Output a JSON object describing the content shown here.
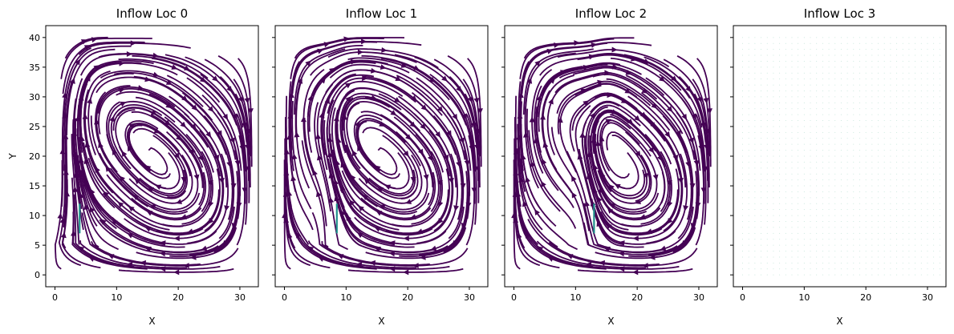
{
  "chart_data": [
    {
      "type": "streamplot",
      "title": "Inflow Loc 0",
      "xlabel": "X",
      "ylabel": "Y",
      "xlim": [
        -1.5,
        33
      ],
      "ylim": [
        -2,
        42
      ],
      "xticks": [
        0,
        10,
        20,
        30
      ],
      "yticks": [
        0,
        5,
        10,
        15,
        20,
        25,
        30,
        35,
        40
      ],
      "inflow_point": [
        4,
        8
      ],
      "color": "#440154"
    },
    {
      "type": "streamplot",
      "title": "Inflow Loc 1",
      "xlabel": "X",
      "ylabel": "",
      "xlim": [
        -1.5,
        33
      ],
      "ylim": [
        -2,
        42
      ],
      "xticks": [
        0,
        10,
        20,
        30
      ],
      "yticks": [
        0,
        5,
        10,
        15,
        20,
        25,
        30,
        35,
        40
      ],
      "inflow_point": [
        8.5,
        8
      ],
      "color": "#440154"
    },
    {
      "type": "streamplot",
      "title": "Inflow Loc 2",
      "xlabel": "X",
      "ylabel": "",
      "xlim": [
        -1.5,
        33
      ],
      "ylim": [
        -2,
        42
      ],
      "xticks": [
        0,
        10,
        20,
        30
      ],
      "yticks": [
        0,
        5,
        10,
        15,
        20,
        25,
        30,
        35,
        40
      ],
      "inflow_point": [
        13,
        8
      ],
      "color": "#440154"
    },
    {
      "type": "streamplot",
      "title": "Inflow Loc 3",
      "xlabel": "X",
      "ylabel": "",
      "xlim": [
        -1.5,
        33
      ],
      "ylim": [
        -2,
        42
      ],
      "xticks": [
        0,
        10,
        20,
        30
      ],
      "yticks": [
        0,
        5,
        10,
        15,
        20,
        25,
        30,
        35,
        40
      ],
      "inflow_point": null,
      "color": "#440154"
    }
  ]
}
